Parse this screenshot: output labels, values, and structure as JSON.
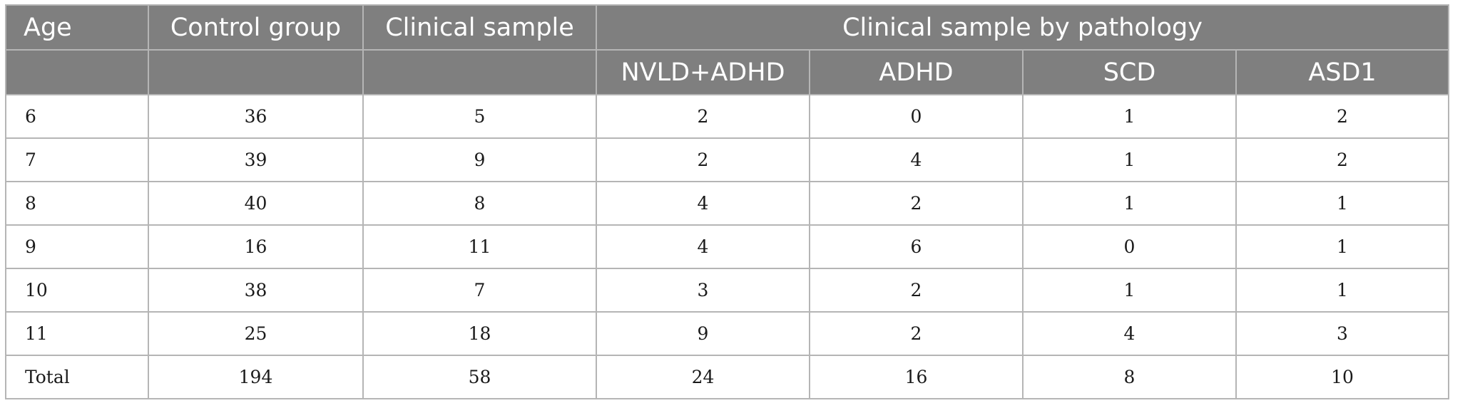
{
  "table": {
    "header_row1": {
      "age": "Age",
      "control_group": "Control group",
      "clinical_sample": "Clinical sample",
      "by_pathology": "Clinical sample by pathology"
    },
    "header_row2": {
      "age": "",
      "control_group": "",
      "clinical_sample": "",
      "nvld_adhd": "NVLD+ADHD",
      "adhd": "ADHD",
      "scd": "SCD",
      "asd1": "ASD1"
    },
    "rows": [
      [
        "6",
        "36",
        "5",
        "2",
        "0",
        "1",
        "2"
      ],
      [
        "7",
        "39",
        "9",
        "2",
        "4",
        "1",
        "2"
      ],
      [
        "8",
        "40",
        "8",
        "4",
        "2",
        "1",
        "1"
      ],
      [
        "9",
        "16",
        "11",
        "4",
        "6",
        "0",
        "1"
      ],
      [
        "10",
        "38",
        "7",
        "3",
        "2",
        "1",
        "1"
      ],
      [
        "11",
        "25",
        "18",
        "9",
        "2",
        "4",
        "3"
      ],
      [
        "Total",
        "194",
        "58",
        "24",
        "16",
        "8",
        "10"
      ]
    ]
  }
}
